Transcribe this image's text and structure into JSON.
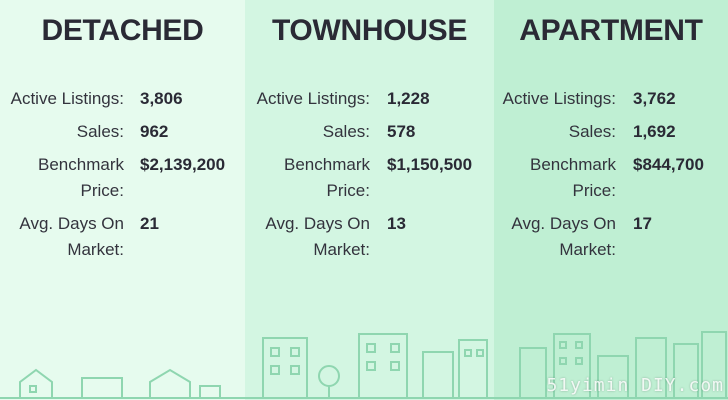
{
  "colors": {
    "panel_0": "#e6fbee",
    "panel_1": "#d3f6e2",
    "panel_2": "#bfefd3",
    "skyline": "#8fd6b0"
  },
  "panels": [
    {
      "title": "DETACHED",
      "stats": [
        {
          "label": "Active Listings:",
          "value": "3,806"
        },
        {
          "label": "Sales:",
          "value": "962"
        },
        {
          "label": "Benchmark Price:",
          "value": "$2,139,200"
        },
        {
          "label": "Avg. Days On Market:",
          "value": "21"
        }
      ]
    },
    {
      "title": "TOWNHOUSE",
      "stats": [
        {
          "label": "Active Listings:",
          "value": "1,228"
        },
        {
          "label": "Sales:",
          "value": "578"
        },
        {
          "label": "Benchmark Price:",
          "value": "$1,150,500"
        },
        {
          "label": "Avg. Days On Market:",
          "value": "13"
        }
      ]
    },
    {
      "title": "APARTMENT",
      "stats": [
        {
          "label": "Active Listings:",
          "value": "3,762"
        },
        {
          "label": "Sales:",
          "value": "1,692"
        },
        {
          "label": "Benchmark Price:",
          "value": "$844,700"
        },
        {
          "label": "Avg. Days On Market:",
          "value": "17"
        }
      ]
    }
  ],
  "watermark": "51yimin DIY.com"
}
